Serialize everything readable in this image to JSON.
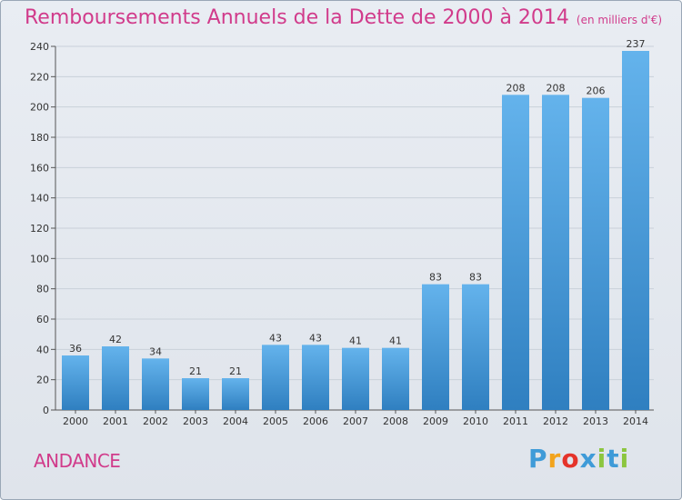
{
  "title": "Remboursements Annuels de la Dette de 2000 à 2014",
  "subtitle": "(en milliers d'€)",
  "place": "ANDANCE",
  "logo": {
    "letters": [
      "P",
      "r",
      "o",
      "x",
      "i",
      "t",
      "i"
    ],
    "colors": [
      "#3f9bd8",
      "#f2a41d",
      "#e5332a",
      "#3f9bd8",
      "#8cc63f",
      "#3f9bd8",
      "#8cc63f"
    ]
  },
  "colors": {
    "bar_light": "#64b3ec",
    "bar_dark": "#2f7fc0",
    "title": "#d13b8b",
    "grid": "#c9d0d9"
  },
  "chart_data": {
    "type": "bar",
    "title": "Remboursements Annuels de la Dette de 2000 à 2014",
    "xlabel": "",
    "ylabel": "",
    "ylim": [
      0,
      240
    ],
    "yticks": [
      0,
      20,
      40,
      60,
      80,
      100,
      120,
      140,
      160,
      180,
      200,
      220,
      240
    ],
    "grid": true,
    "categories": [
      "2000",
      "2001",
      "2002",
      "2003",
      "2004",
      "2005",
      "2006",
      "2007",
      "2008",
      "2009",
      "2010",
      "2011",
      "2012",
      "2013",
      "2014"
    ],
    "values": [
      36,
      42,
      34,
      21,
      21,
      43,
      43,
      41,
      41,
      83,
      83,
      208,
      208,
      206,
      237
    ]
  }
}
